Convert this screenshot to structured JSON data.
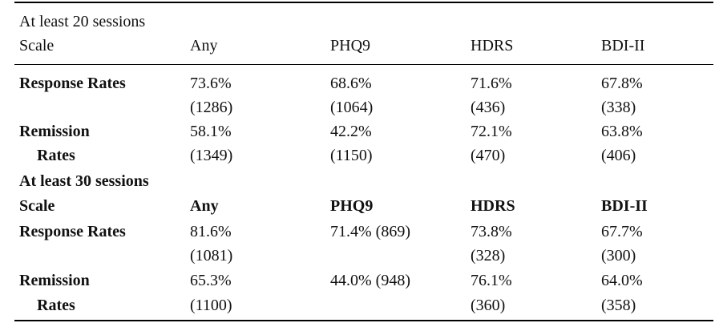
{
  "table": {
    "sections": [
      {
        "title": "At least 20 sessions",
        "header": [
          "Scale",
          "Any",
          "PHQ9",
          "HDRS",
          "BDI-II"
        ],
        "rows": [
          {
            "label": [
              "Response Rates"
            ],
            "cells": [
              [
                "73.6%",
                "(1286)"
              ],
              [
                "68.6%",
                "(1064)"
              ],
              [
                "71.6%",
                "(436)"
              ],
              [
                "67.8%",
                "(338)"
              ]
            ]
          },
          {
            "label": [
              "Remission",
              "Rates"
            ],
            "cells": [
              [
                "58.1%",
                "(1349)"
              ],
              [
                "42.2%",
                "(1150)"
              ],
              [
                "72.1%",
                "(470)"
              ],
              [
                "63.8%",
                "(406)"
              ]
            ]
          }
        ]
      },
      {
        "title": "At least 30 sessions",
        "header": [
          "Scale",
          "Any",
          "PHQ9",
          "HDRS",
          "BDI-II"
        ],
        "rows": [
          {
            "label": [
              "Response Rates"
            ],
            "cells": [
              [
                "81.6%",
                "(1081)"
              ],
              [
                "71.4% (869)"
              ],
              [
                "73.8%",
                "(328)"
              ],
              [
                "67.7%",
                "(300)"
              ]
            ]
          },
          {
            "label": [
              "Remission",
              "Rates"
            ],
            "cells": [
              [
                "65.3%",
                "(1100)"
              ],
              [
                "44.0% (948)"
              ],
              [
                "76.1%",
                "(360)"
              ],
              [
                "64.0%",
                "(358)"
              ]
            ]
          }
        ]
      }
    ]
  }
}
